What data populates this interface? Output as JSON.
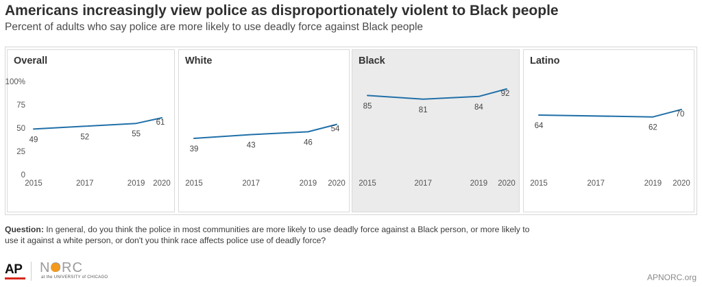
{
  "header": {
    "title": "Americans increasingly view police as disproportionately violent to Black people",
    "subtitle": "Percent of adults who say police are more likely to use deadly force against Black people"
  },
  "chart_data": {
    "type": "line",
    "x": [
      2015,
      2017,
      2019,
      2020
    ],
    "x_tick_labels": [
      "2015",
      "2017",
      "2019",
      "2020"
    ],
    "ylim": [
      0,
      100
    ],
    "y_ticks": [
      0,
      25,
      50,
      75,
      100
    ],
    "y_tick_labels": [
      "0",
      "25",
      "50",
      "75",
      "100%"
    ],
    "line_color": "#1f6fa8",
    "panels": [
      {
        "title": "Overall",
        "x": [
          2015,
          2017,
          2019,
          2020
        ],
        "values": [
          49,
          52,
          55,
          61
        ],
        "labels": [
          "49",
          "52",
          "55",
          "61"
        ],
        "shaded": false
      },
      {
        "title": "White",
        "x": [
          2015,
          2017,
          2019,
          2020
        ],
        "values": [
          39,
          43,
          46,
          54
        ],
        "labels": [
          "39",
          "43",
          "46",
          "54"
        ],
        "shaded": false
      },
      {
        "title": "Black",
        "x": [
          2015,
          2017,
          2019,
          2020
        ],
        "values": [
          85,
          81,
          84,
          92
        ],
        "labels": [
          "85",
          "81",
          "84",
          "92"
        ],
        "shaded": true
      },
      {
        "title": "Latino",
        "x": [
          2015,
          2019,
          2020
        ],
        "values": [
          64,
          62,
          70
        ],
        "labels": [
          "64",
          "62",
          "70"
        ],
        "shaded": false
      }
    ]
  },
  "footer": {
    "question_label": "Question:",
    "question_text": " In general, do you think the police in most communities are more likely to use deadly force against a Black person, or more likely to use it against a white person, or don't you think race affects police use of deadly force?",
    "logo_ap": "AP",
    "logo_norc": "NORC",
    "logo_norc_sub": "at the UNIVERSITY of CHICAGO",
    "site": "APNORC.org"
  }
}
